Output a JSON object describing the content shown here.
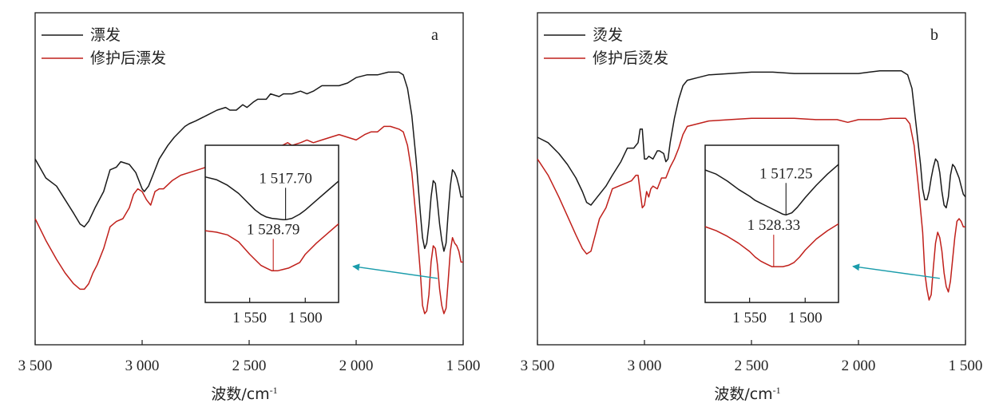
{
  "colors": {
    "black_series": "#1a1a1a",
    "red_series": "#c0201b",
    "arrow": "#1a9cab",
    "frame": "#1a1a1a"
  },
  "chart_data": [
    {
      "type": "line",
      "panel_letter": "a",
      "xlabel": "波数/cm",
      "xlabel_sup": "-1",
      "xlim": [
        3500,
        1500
      ],
      "xticks": [
        3500,
        3000,
        2500,
        2000,
        1500
      ],
      "xtick_labels": [
        "3 500",
        "3 000",
        "2 500",
        "2 000",
        "1 500"
      ],
      "ylim": [
        0,
        100
      ],
      "series": [
        {
          "name": "漂发",
          "color": "black",
          "x": [
            3500,
            3450,
            3400,
            3360,
            3320,
            3290,
            3270,
            3250,
            3220,
            3180,
            3150,
            3120,
            3100,
            3060,
            3030,
            3000,
            2990,
            2970,
            2950,
            2920,
            2880,
            2850,
            2800,
            2780,
            2750,
            2700,
            2650,
            2610,
            2590,
            2560,
            2530,
            2510,
            2480,
            2460,
            2420,
            2400,
            2360,
            2340,
            2300,
            2260,
            2230,
            2200,
            2160,
            2120,
            2080,
            2040,
            2000,
            1950,
            1900,
            1850,
            1800,
            1780,
            1760,
            1740,
            1720,
            1700,
            1690,
            1680,
            1670,
            1660,
            1650,
            1640,
            1630,
            1620,
            1610,
            1600,
            1590,
            1580,
            1570,
            1560,
            1550,
            1540,
            1530,
            1520,
            1510,
            1500
          ],
          "y": [
            62,
            55,
            52,
            47,
            42,
            38,
            37,
            39,
            44,
            50,
            58,
            59,
            61,
            60,
            57,
            51,
            50,
            52,
            56,
            62,
            67,
            70,
            74,
            75,
            76,
            78,
            80,
            81,
            80,
            80,
            82,
            81,
            83,
            84,
            84,
            86,
            85,
            86,
            86,
            87,
            86,
            87,
            89,
            89,
            89,
            90,
            92,
            93,
            93,
            94,
            94,
            93,
            88,
            78,
            62,
            42,
            33,
            29,
            31,
            38,
            48,
            54,
            53,
            46,
            38,
            32,
            28,
            31,
            42,
            52,
            58,
            57,
            55,
            52,
            48,
            48
          ]
        },
        {
          "name": "修护后漂发",
          "color": "red",
          "x": [
            3500,
            3450,
            3400,
            3360,
            3320,
            3290,
            3270,
            3250,
            3230,
            3210,
            3180,
            3150,
            3120,
            3090,
            3060,
            3040,
            3020,
            3000,
            2980,
            2960,
            2940,
            2920,
            2900,
            2860,
            2820,
            2780,
            2740,
            2700,
            2680,
            2650,
            2600,
            2560,
            2540,
            2500,
            2460,
            2420,
            2400,
            2370,
            2320,
            2300,
            2260,
            2230,
            2200,
            2160,
            2120,
            2080,
            2040,
            2000,
            1960,
            1930,
            1900,
            1870,
            1840,
            1800,
            1780,
            1760,
            1740,
            1720,
            1700,
            1690,
            1680,
            1670,
            1660,
            1650,
            1640,
            1630,
            1620,
            1610,
            1600,
            1590,
            1580,
            1570,
            1560,
            1550,
            1540,
            1530,
            1520,
            1510,
            1500
          ],
          "y": [
            40,
            32,
            25,
            20,
            16,
            14,
            14,
            16,
            20,
            23,
            29,
            37,
            39,
            40,
            44,
            49,
            51,
            50,
            47,
            45,
            50,
            51,
            51,
            54,
            56,
            57,
            58,
            59,
            61,
            60,
            62,
            62,
            63,
            62,
            64,
            66,
            67,
            66,
            68,
            67,
            68,
            69,
            68,
            69,
            70,
            71,
            70,
            69,
            71,
            72,
            72,
            74,
            74,
            73,
            72,
            67,
            57,
            40,
            20,
            8,
            5,
            6,
            12,
            24,
            30,
            29,
            23,
            14,
            8,
            5,
            7,
            17,
            28,
            33,
            31,
            30,
            28,
            24,
            24
          ]
        }
      ],
      "inset": {
        "xlim": [
          1590,
          1470
        ],
        "xticks": [
          1550,
          1500
        ],
        "xtick_labels": [
          "1 550",
          "1 500"
        ],
        "ylim": [
          0,
          100
        ],
        "arrow_from_x": 1620,
        "arrow_from_y": 18,
        "arrow_target": "inset-right-edge",
        "peaks": [
          {
            "x": 1517.7,
            "label": "1 517.70",
            "series": "black"
          },
          {
            "x": 1528.79,
            "label": "1 528.79",
            "series": "red"
          }
        ],
        "series": [
          {
            "color": "black",
            "x": [
              1590,
              1580,
              1570,
              1560,
              1550,
              1545,
              1540,
              1535,
              1530,
              1525,
              1520,
              1517.7,
              1512,
              1505,
              1500,
              1490,
              1480,
              1470
            ],
            "y": [
              84,
              82,
              78,
              72,
              64,
              60,
              57,
              55,
              54,
              53.5,
              53,
              53,
              54,
              57,
              60,
              67,
              74,
              81
            ]
          },
          {
            "color": "red",
            "x": [
              1590,
              1580,
              1570,
              1560,
              1550,
              1545,
              1540,
              1535,
              1530,
              1528.79,
              1525,
              1520,
              1515,
              1510,
              1505,
              1500,
              1490,
              1480,
              1470
            ],
            "y": [
              45,
              44,
              42,
              37,
              28,
              24,
              20,
              18,
              16,
              16,
              16,
              17,
              18,
              20,
              22,
              28,
              36,
              43,
              50
            ]
          }
        ]
      }
    },
    {
      "type": "line",
      "panel_letter": "b",
      "xlabel": "波数/cm",
      "xlabel_sup": "-1",
      "xlim": [
        3500,
        1500
      ],
      "xticks": [
        3500,
        3000,
        2500,
        2000,
        1500
      ],
      "xtick_labels": [
        "3 500",
        "3 000",
        "2 500",
        "2 000",
        "1 500"
      ],
      "ylim": [
        0,
        100
      ],
      "series": [
        {
          "name": "烫发",
          "color": "black",
          "x": [
            3500,
            3450,
            3400,
            3360,
            3320,
            3290,
            3270,
            3250,
            3220,
            3180,
            3150,
            3110,
            3080,
            3050,
            3030,
            3020,
            3010,
            3000,
            2990,
            2980,
            2960,
            2940,
            2930,
            2910,
            2900,
            2890,
            2880,
            2860,
            2840,
            2820,
            2800,
            2750,
            2700,
            2600,
            2500,
            2400,
            2300,
            2200,
            2100,
            2000,
            1950,
            1900,
            1850,
            1800,
            1770,
            1750,
            1730,
            1710,
            1700,
            1690,
            1680,
            1670,
            1660,
            1650,
            1640,
            1630,
            1620,
            1610,
            1600,
            1590,
            1580,
            1570,
            1560,
            1550,
            1540,
            1530,
            1520,
            1510,
            1500
          ],
          "y": [
            70,
            68,
            64,
            60,
            55,
            50,
            46,
            45,
            48,
            52,
            56,
            61,
            66,
            66,
            68,
            73,
            73,
            62,
            62,
            63,
            62,
            65,
            65,
            64,
            61,
            62,
            68,
            77,
            84,
            89,
            91,
            92,
            93,
            93.5,
            94,
            94,
            93.5,
            93.5,
            93.5,
            93.5,
            94,
            94.5,
            94.5,
            94.5,
            93,
            88,
            74,
            60,
            51,
            47,
            47,
            50,
            55,
            59,
            62,
            61,
            57,
            50,
            45,
            44,
            48,
            56,
            60,
            59,
            57,
            55,
            52,
            49,
            48
          ]
        },
        {
          "name": "修护后烫发",
          "color": "red",
          "x": [
            3500,
            3450,
            3400,
            3360,
            3320,
            3290,
            3270,
            3250,
            3230,
            3210,
            3180,
            3150,
            3120,
            3090,
            3060,
            3040,
            3030,
            3020,
            3010,
            3000,
            2990,
            2980,
            2970,
            2960,
            2940,
            2920,
            2900,
            2880,
            2860,
            2840,
            2820,
            2800,
            2750,
            2700,
            2600,
            2500,
            2400,
            2300,
            2200,
            2100,
            2050,
            2000,
            1950,
            1900,
            1850,
            1800,
            1780,
            1760,
            1740,
            1720,
            1700,
            1690,
            1680,
            1670,
            1660,
            1650,
            1640,
            1630,
            1620,
            1610,
            1600,
            1590,
            1580,
            1570,
            1560,
            1550,
            1540,
            1530,
            1520,
            1510,
            1500
          ],
          "y": [
            62,
            56,
            48,
            41,
            34,
            29,
            27,
            28,
            34,
            40,
            44,
            51,
            52,
            53,
            54,
            56,
            56,
            50,
            44,
            45,
            50,
            48,
            51,
            52,
            51,
            55,
            55,
            59,
            62,
            66,
            71,
            74,
            75,
            76,
            76.5,
            77,
            77,
            77,
            76.5,
            76.5,
            75.5,
            76.5,
            76.5,
            76.5,
            77,
            77,
            77,
            75,
            67,
            52,
            35,
            20,
            14,
            10,
            12,
            22,
            31,
            35,
            33,
            28,
            20,
            15,
            13,
            17,
            25,
            33,
            39,
            40,
            39,
            37,
            37
          ]
        }
      ],
      "inset": {
        "xlim": [
          1590,
          1470
        ],
        "xticks": [
          1550,
          1500
        ],
        "xtick_labels": [
          "1 550",
          "1 500"
        ],
        "ylim": [
          0,
          100
        ],
        "arrow_from_x": 1620,
        "arrow_from_y": 18,
        "arrow_target": "inset-right-edge",
        "peaks": [
          {
            "x": 1517.25,
            "label": "1 517.25",
            "series": "black"
          },
          {
            "x": 1528.33,
            "label": "1 528.33",
            "series": "red"
          }
        ],
        "series": [
          {
            "color": "black",
            "x": [
              1590,
              1580,
              1570,
              1560,
              1550,
              1545,
              1540,
              1535,
              1530,
              1525,
              1520,
              1517.25,
              1512,
              1507,
              1500,
              1490,
              1480,
              1470
            ],
            "y": [
              89,
              86,
              81,
              75,
              70,
              67,
              65,
              63,
              61,
              59,
              57,
              56.5,
              58,
              62,
              69,
              78,
              86,
              93
            ]
          },
          {
            "color": "red",
            "x": [
              1590,
              1580,
              1570,
              1560,
              1550,
              1545,
              1540,
              1535,
              1530,
              1528.33,
              1525,
              1520,
              1515,
              1510,
              1505,
              1500,
              1490,
              1480,
              1470
            ],
            "y": [
              48,
              45,
              41,
              36,
              30,
              26,
              23,
              21,
              19,
              19,
              19,
              19,
              20,
              22,
              26,
              31,
              39,
              45,
              50
            ]
          }
        ]
      }
    }
  ]
}
